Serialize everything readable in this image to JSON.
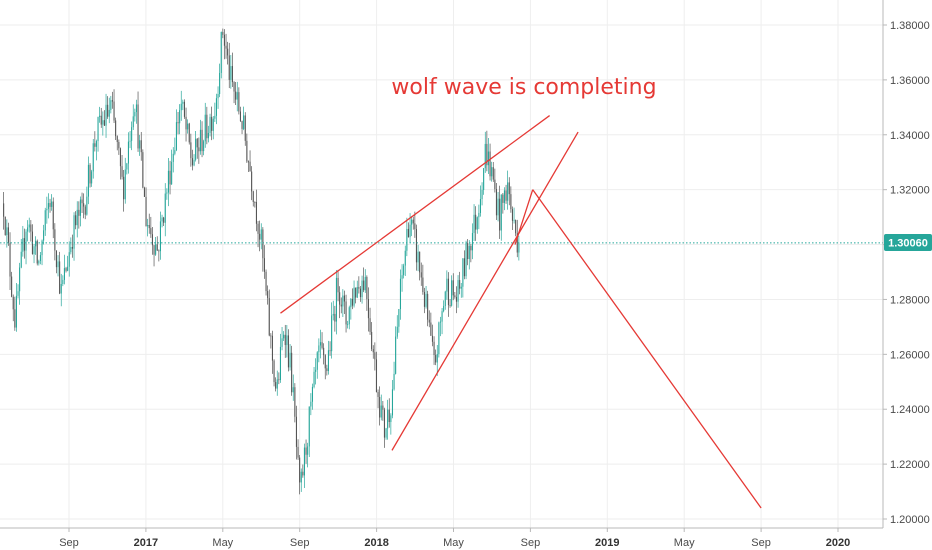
{
  "chart_data": {
    "type": "candlestick",
    "annotation": "wolf wave is completing",
    "current_price": 1.3006,
    "current_price_label": "1.30060",
    "y_ticks": [
      "1.20000",
      "1.22000",
      "1.24000",
      "1.26000",
      "1.28000",
      "1.30000",
      "1.32000",
      "1.34000",
      "1.36000",
      "1.38000"
    ],
    "y_range": [
      1.196,
      1.384
    ],
    "x_ticks": [
      {
        "label": "Sep",
        "x": 0,
        "bold": false
      },
      {
        "label": "2017",
        "x": 1,
        "bold": true
      },
      {
        "label": "May",
        "x": 2,
        "bold": false
      },
      {
        "label": "Sep",
        "x": 3,
        "bold": false
      },
      {
        "label": "2018",
        "x": 4,
        "bold": true
      },
      {
        "label": "May",
        "x": 5,
        "bold": false
      },
      {
        "label": "Sep",
        "x": 6,
        "bold": false
      },
      {
        "label": "2019",
        "x": 7,
        "bold": true
      },
      {
        "label": "May",
        "x": 8,
        "bold": false
      },
      {
        "label": "Sep",
        "x": 9,
        "bold": false
      },
      {
        "label": "2020",
        "x": 10,
        "bold": true
      }
    ],
    "price_path": [
      {
        "t": -0.85,
        "v": 1.315
      },
      {
        "t": -0.7,
        "v": 1.272
      },
      {
        "t": -0.55,
        "v": 1.31
      },
      {
        "t": -0.4,
        "v": 1.292
      },
      {
        "t": -0.25,
        "v": 1.318
      },
      {
        "t": -0.1,
        "v": 1.282
      },
      {
        "t": 0.05,
        "v": 1.305
      },
      {
        "t": 0.2,
        "v": 1.315
      },
      {
        "t": 0.35,
        "v": 1.34
      },
      {
        "t": 0.55,
        "v": 1.35
      },
      {
        "t": 0.7,
        "v": 1.32
      },
      {
        "t": 0.85,
        "v": 1.355
      },
      {
        "t": 1.0,
        "v": 1.31
      },
      {
        "t": 1.15,
        "v": 1.298
      },
      {
        "t": 1.3,
        "v": 1.325
      },
      {
        "t": 1.45,
        "v": 1.352
      },
      {
        "t": 1.6,
        "v": 1.33
      },
      {
        "t": 1.75,
        "v": 1.34
      },
      {
        "t": 1.9,
        "v": 1.35
      },
      {
        "t": 2.0,
        "v": 1.378
      },
      {
        "t": 2.1,
        "v": 1.36
      },
      {
        "t": 2.25,
        "v": 1.345
      },
      {
        "t": 2.4,
        "v": 1.32
      },
      {
        "t": 2.5,
        "v": 1.3
      },
      {
        "t": 2.6,
        "v": 1.27
      },
      {
        "t": 2.7,
        "v": 1.245
      },
      {
        "t": 2.8,
        "v": 1.272
      },
      {
        "t": 2.9,
        "v": 1.25
      },
      {
        "t": 3.0,
        "v": 1.208
      },
      {
        "t": 3.12,
        "v": 1.235
      },
      {
        "t": 3.25,
        "v": 1.26
      },
      {
        "t": 3.35,
        "v": 1.255
      },
      {
        "t": 3.5,
        "v": 1.287
      },
      {
        "t": 3.6,
        "v": 1.272
      },
      {
        "t": 3.7,
        "v": 1.283
      },
      {
        "t": 3.85,
        "v": 1.288
      },
      {
        "t": 4.0,
        "v": 1.25
      },
      {
        "t": 4.1,
        "v": 1.232
      },
      {
        "t": 4.2,
        "v": 1.245
      },
      {
        "t": 4.3,
        "v": 1.28
      },
      {
        "t": 4.42,
        "v": 1.31
      },
      {
        "t": 4.5,
        "v": 1.3
      },
      {
        "t": 4.6,
        "v": 1.285
      },
      {
        "t": 4.75,
        "v": 1.255
      },
      {
        "t": 4.9,
        "v": 1.285
      },
      {
        "t": 5.05,
        "v": 1.28
      },
      {
        "t": 5.2,
        "v": 1.3
      },
      {
        "t": 5.3,
        "v": 1.31
      },
      {
        "t": 5.42,
        "v": 1.335
      },
      {
        "t": 5.5,
        "v": 1.325
      },
      {
        "t": 5.6,
        "v": 1.31
      },
      {
        "t": 5.7,
        "v": 1.322
      },
      {
        "t": 5.78,
        "v": 1.307
      },
      {
        "t": 5.85,
        "v": 1.3006
      }
    ],
    "drawings": [
      {
        "name": "upper-trendline",
        "points": [
          {
            "t": 2.75,
            "v": 1.275
          },
          {
            "t": 6.25,
            "v": 1.347
          }
        ]
      },
      {
        "name": "lower-trendline",
        "points": [
          {
            "t": 4.2,
            "v": 1.225
          },
          {
            "t": 6.62,
            "v": 1.341
          }
        ]
      },
      {
        "name": "projection-line-up",
        "points": [
          {
            "t": 5.8,
            "v": 1.3
          },
          {
            "t": 6.03,
            "v": 1.32
          }
        ]
      },
      {
        "name": "projection-line-down",
        "points": [
          {
            "t": 6.03,
            "v": 1.32
          },
          {
            "t": 9.0,
            "v": 1.204
          }
        ]
      }
    ],
    "colors": {
      "up": "#26a69a",
      "down": "#555555",
      "trendline": "#e53935",
      "annotation": "#e53935",
      "price_line": "#26a69a",
      "price_tag": "#26a69a",
      "grid": "#eeeeee"
    },
    "grid": true
  }
}
